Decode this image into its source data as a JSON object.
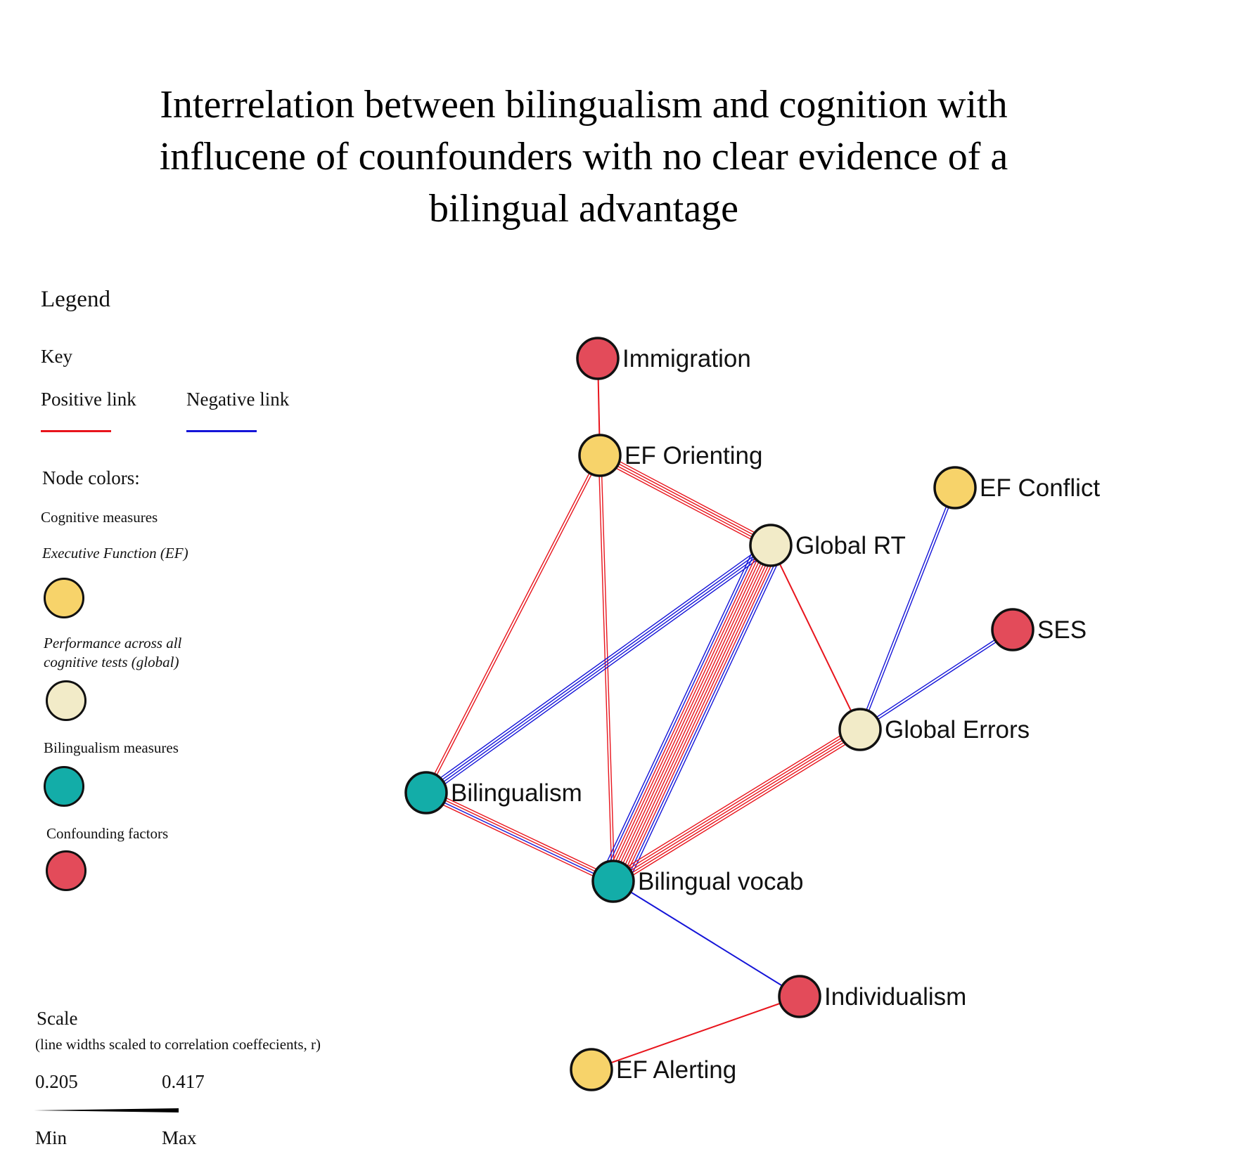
{
  "title": {
    "line1": "Interrelation between bilingualism and cognition with",
    "line2": "influcene of counfounders with no clear evidence of a",
    "line3": "bilingual advantage"
  },
  "legend": {
    "heading": "Legend",
    "key_label": "Key",
    "positive_link_label": "Positive link",
    "negative_link_label": "Negative link",
    "node_colors_label": "Node colors:",
    "cognitive_label": "Cognitive measures",
    "ef_label": "Executive Function (EF)",
    "global_label_line1": "Performance across all",
    "global_label_line2": "cognitive tests (global)",
    "bilingualism_label": "Bilingualism measures",
    "confounding_label": "Confounding factors",
    "scale_label": "Scale",
    "scale_note": "(line widths scaled to correlation coeffecients, r)",
    "scale_min_value": "0.205",
    "scale_max_value": "0.417",
    "scale_min_label": "Min",
    "scale_max_label": "Max"
  },
  "colors": {
    "positive": "#e8141c",
    "negative": "#1414d8",
    "ef": "#f7d36a",
    "global": "#f2ebc8",
    "bilingualism": "#13ada8",
    "confounding": "#e34b5a",
    "node_border": "#111111"
  },
  "nodes": [
    {
      "id": "immigration",
      "label": "Immigration",
      "group": "confounding"
    },
    {
      "id": "ef_orienting",
      "label": "EF Orienting",
      "group": "ef"
    },
    {
      "id": "ef_conflict",
      "label": "EF Conflict",
      "group": "ef"
    },
    {
      "id": "global_rt",
      "label": "Global RT",
      "group": "global"
    },
    {
      "id": "ses",
      "label": "SES",
      "group": "confounding"
    },
    {
      "id": "global_errors",
      "label": "Global Errors",
      "group": "global"
    },
    {
      "id": "bilingualism",
      "label": "Bilingualism",
      "group": "bilingualism"
    },
    {
      "id": "bilingual_vocab",
      "label": "Bilingual vocab",
      "group": "bilingualism"
    },
    {
      "id": "individualism",
      "label": "Individualism",
      "group": "confounding"
    },
    {
      "id": "ef_alerting",
      "label": "EF Alerting",
      "group": "ef"
    }
  ],
  "edges": [
    {
      "source": "immigration",
      "target": "ef_orienting",
      "links": [
        "positive"
      ]
    },
    {
      "source": "ef_orienting",
      "target": "global_rt",
      "links": [
        "positive",
        "positive",
        "positive",
        "positive"
      ]
    },
    {
      "source": "ef_orienting",
      "target": "bilingualism",
      "links": [
        "positive",
        "positive"
      ]
    },
    {
      "source": "ef_orienting",
      "target": "bilingual_vocab",
      "links": [
        "positive",
        "positive"
      ]
    },
    {
      "source": "global_rt",
      "target": "bilingualism",
      "links": [
        "negative",
        "negative",
        "negative",
        "negative"
      ]
    },
    {
      "source": "global_rt",
      "target": "bilingual_vocab",
      "links": [
        "negative",
        "negative",
        "positive",
        "positive",
        "positive",
        "positive",
        "positive",
        "positive",
        "positive",
        "positive",
        "negative",
        "negative"
      ]
    },
    {
      "source": "global_rt",
      "target": "global_errors",
      "links": [
        "positive"
      ]
    },
    {
      "source": "ef_conflict",
      "target": "global_errors",
      "links": [
        "negative",
        "negative"
      ]
    },
    {
      "source": "ses",
      "target": "global_errors",
      "links": [
        "negative",
        "negative"
      ]
    },
    {
      "source": "global_errors",
      "target": "bilingual_vocab",
      "links": [
        "positive",
        "positive",
        "positive",
        "positive",
        "positive"
      ]
    },
    {
      "source": "bilingualism",
      "target": "bilingual_vocab",
      "links": [
        "positive",
        "positive",
        "negative",
        "positive"
      ]
    },
    {
      "source": "bilingual_vocab",
      "target": "individualism",
      "links": [
        "negative"
      ]
    },
    {
      "source": "individualism",
      "target": "ef_alerting",
      "links": [
        "positive"
      ]
    }
  ]
}
